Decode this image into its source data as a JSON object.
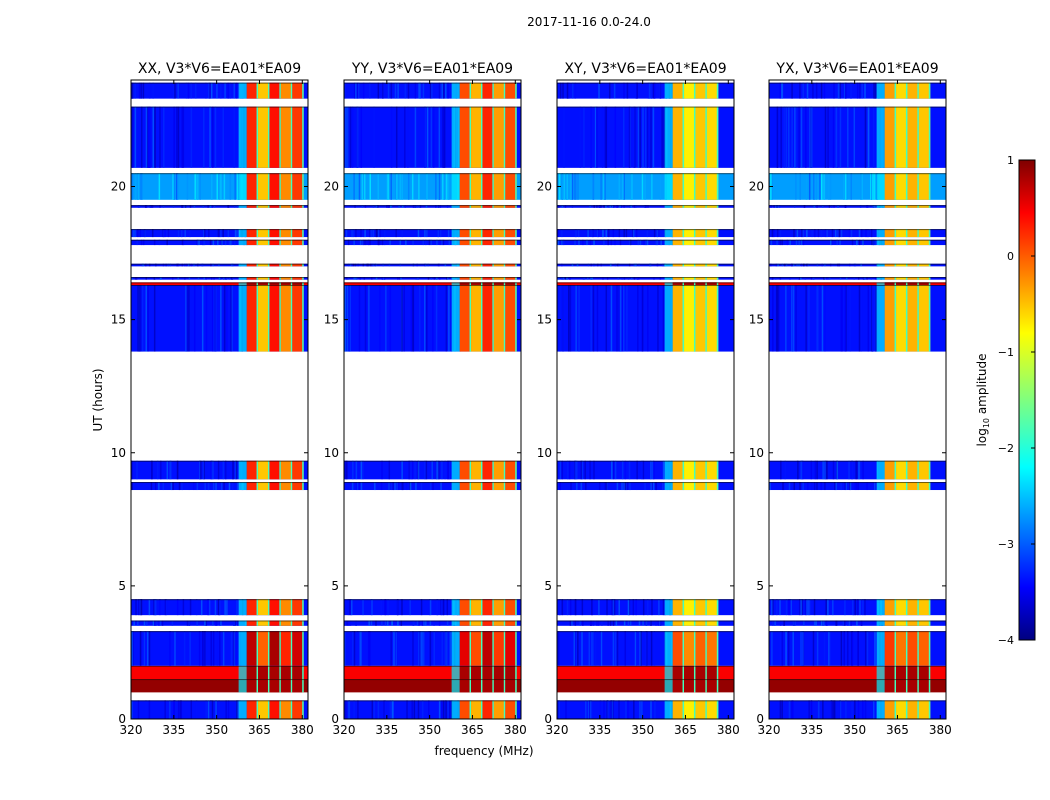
{
  "chart_data": {
    "type": "heatmap",
    "title": "2017-11-16 0.0-24.0",
    "xlabel": "frequency (MHz)",
    "ylabel": "UT (hours)",
    "xlim": [
      320,
      382
    ],
    "ylim": [
      0,
      24
    ],
    "xticks": [
      "320",
      "335",
      "350",
      "365",
      "380"
    ],
    "yticks": [
      "0",
      "5",
      "10",
      "15",
      "20"
    ],
    "panels": [
      {
        "title": "XX, V3*V6=EA01*EA09",
        "strong_band": [
          360.5,
          380.5
        ],
        "strong_levels": [
          0.2,
          -0.6,
          0.3,
          -0.3,
          0.1
        ]
      },
      {
        "title": "YY, V3*V6=EA01*EA09",
        "strong_band": [
          360.5,
          380.5
        ],
        "strong_levels": [
          0.0,
          -0.5,
          0.2,
          -0.4,
          0.0
        ]
      },
      {
        "title": "XY, V3*V6=EA01*EA09",
        "strong_band": [
          360.5,
          376.5
        ],
        "strong_levels": [
          -0.5,
          -0.8,
          -0.6,
          -0.7
        ]
      },
      {
        "title": "YX, V3*V6=EA01*EA09",
        "strong_band": [
          360.5,
          376.5
        ],
        "strong_levels": [
          -0.4,
          -0.7,
          -0.5,
          -0.6
        ]
      }
    ],
    "data_rows_ut": [
      [
        0.0,
        0.7,
        "normal"
      ],
      [
        1.0,
        1.5,
        "saturated"
      ],
      [
        1.5,
        2.0,
        "high"
      ],
      [
        2.0,
        3.3,
        "normal"
      ],
      [
        3.5,
        3.7,
        "normal"
      ],
      [
        3.9,
        4.5,
        "normal"
      ],
      [
        8.6,
        8.9,
        "normal"
      ],
      [
        9.0,
        9.7,
        "normal"
      ],
      [
        13.8,
        16.3,
        "normal"
      ],
      [
        16.3,
        16.4,
        "high"
      ],
      [
        16.5,
        16.6,
        "normal"
      ],
      [
        17.0,
        17.1,
        "normal"
      ],
      [
        17.8,
        18.0,
        "normal"
      ],
      [
        18.1,
        18.4,
        "normal"
      ],
      [
        19.2,
        19.3,
        "normal"
      ],
      [
        19.5,
        20.5,
        "bright"
      ],
      [
        20.7,
        23.0,
        "normal"
      ],
      [
        23.3,
        23.9,
        "normal"
      ]
    ],
    "colorbar": {
      "label": "log10 amplitude",
      "label_main": "log",
      "label_sub": "10",
      "label_rest": " amplitude",
      "range": [
        -4,
        1
      ],
      "ticks": [
        "1",
        "0",
        "−1",
        "−2",
        "−3",
        "−4"
      ],
      "colormap": "jet"
    }
  }
}
